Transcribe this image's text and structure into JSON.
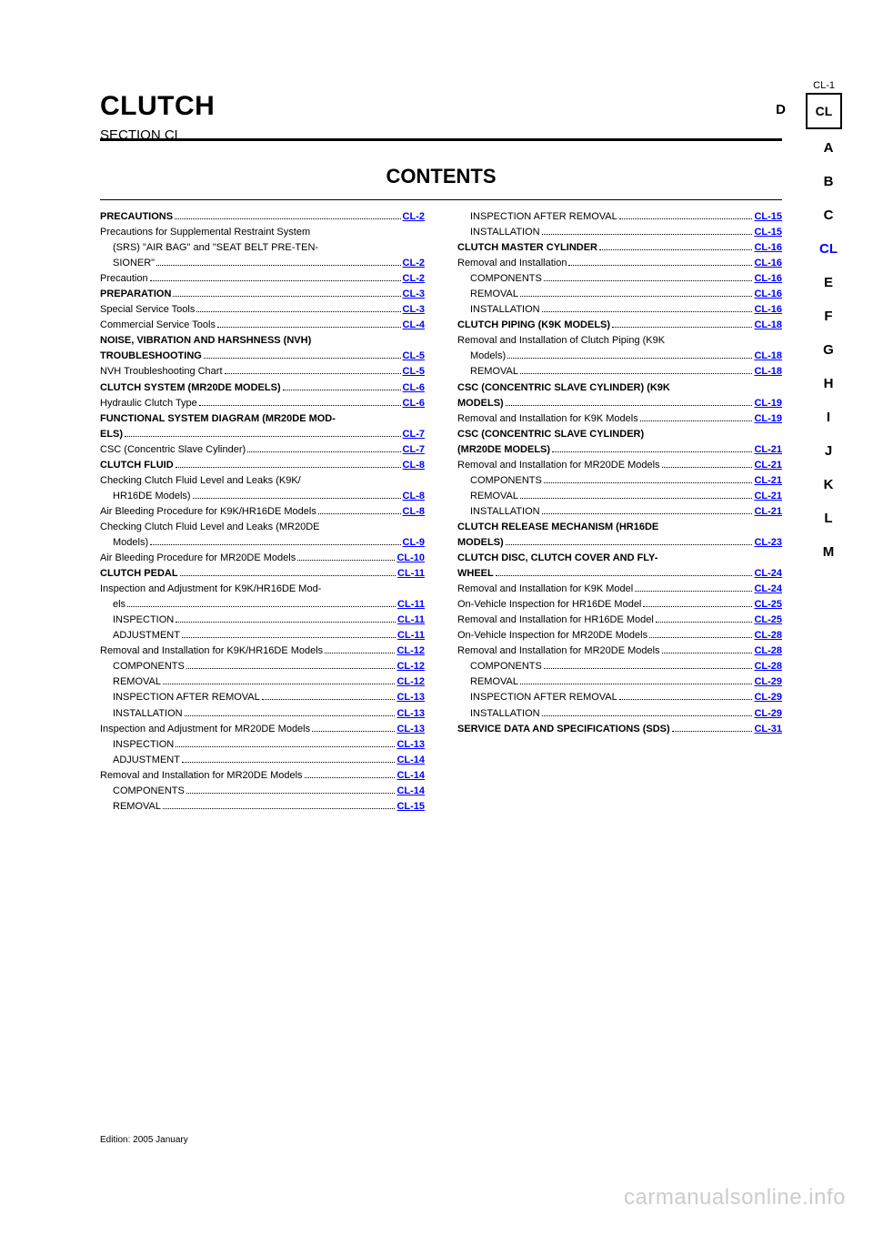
{
  "header": {
    "page_number": "CL-1",
    "section_letter": "D",
    "section_code": "CL"
  },
  "title": {
    "main": "CLUTCH",
    "sub": "SECTION CL"
  },
  "contents_heading": "CONTENTS",
  "side_tabs": [
    {
      "label": "A",
      "current": false
    },
    {
      "label": "B",
      "current": false
    },
    {
      "label": "C",
      "current": false
    },
    {
      "label": "CL",
      "current": true
    },
    {
      "label": "E",
      "current": false
    },
    {
      "label": "F",
      "current": false
    },
    {
      "label": "G",
      "current": false
    },
    {
      "label": "H",
      "current": false
    },
    {
      "label": "I",
      "current": false
    },
    {
      "label": "J",
      "current": false
    },
    {
      "label": "K",
      "current": false
    },
    {
      "label": "L",
      "current": false
    },
    {
      "label": "M",
      "current": false
    }
  ],
  "toc": {
    "left": [
      {
        "level": 0,
        "label": "PRECAUTIONS",
        "page": "2"
      },
      {
        "level": 1,
        "label": "Precautions for Supplemental Restraint System",
        "page": null
      },
      {
        "level": 2,
        "label": "(SRS) \"AIR BAG\" and \"SEAT BELT PRE-TEN-",
        "page": null
      },
      {
        "level": 2,
        "label": "SIONER\"",
        "page": "2"
      },
      {
        "level": 1,
        "label": "Precaution",
        "page": "2"
      },
      {
        "level": 0,
        "label": "PREPARATION",
        "page": "3"
      },
      {
        "level": 1,
        "label": "Special Service Tools",
        "page": "3"
      },
      {
        "level": 1,
        "label": "Commercial Service Tools",
        "page": "4"
      },
      {
        "level": 0,
        "label": "NOISE, VIBRATION AND HARSHNESS (NVH)",
        "page": null
      },
      {
        "level": 0,
        "label": "TROUBLESHOOTING",
        "page": "5"
      },
      {
        "level": 1,
        "label": "NVH Troubleshooting Chart",
        "page": "5"
      },
      {
        "level": 0,
        "label": "CLUTCH SYSTEM (MR20DE MODELS)",
        "page": "6"
      },
      {
        "level": 1,
        "label": "Hydraulic Clutch Type",
        "page": "6"
      },
      {
        "level": 0,
        "label": "FUNCTIONAL SYSTEM DIAGRAM (MR20DE MOD-",
        "page": null
      },
      {
        "level": 0,
        "label": "ELS)",
        "page": "7"
      },
      {
        "level": 1,
        "label": "CSC (Concentric Slave Cylinder)",
        "page": "7"
      },
      {
        "level": 0,
        "label": "CLUTCH FLUID",
        "page": "8"
      },
      {
        "level": 1,
        "label": "Checking Clutch Fluid Level and Leaks (K9K/",
        "page": null
      },
      {
        "level": 2,
        "label": "HR16DE Models)",
        "page": "8"
      },
      {
        "level": 1,
        "label": "Air Bleeding Procedure for K9K/HR16DE Models",
        "page": "8"
      },
      {
        "level": 1,
        "label": "Checking Clutch Fluid Level and Leaks (MR20DE",
        "page": null
      },
      {
        "level": 2,
        "label": "Models)",
        "page": "9"
      },
      {
        "level": 1,
        "label": "Air Bleeding Procedure for MR20DE Models",
        "page": "10"
      },
      {
        "level": 0,
        "label": "CLUTCH PEDAL",
        "page": "11"
      },
      {
        "level": 1,
        "label": "Inspection and Adjustment for K9K/HR16DE Mod-",
        "page": null
      },
      {
        "level": 2,
        "label": "els",
        "page": "11"
      },
      {
        "level": 2,
        "label": "INSPECTION",
        "page": "11"
      },
      {
        "level": 2,
        "label": "ADJUSTMENT",
        "page": "11"
      },
      {
        "level": 1,
        "label": "Removal and Installation for K9K/HR16DE Models",
        "page": "12"
      },
      {
        "level": 2,
        "label": "COMPONENTS",
        "page": "12"
      },
      {
        "level": 2,
        "label": "REMOVAL",
        "page": "12"
      },
      {
        "level": 2,
        "label": "INSPECTION AFTER REMOVAL",
        "page": "13"
      },
      {
        "level": 2,
        "label": "INSTALLATION",
        "page": "13"
      },
      {
        "level": 1,
        "label": "Inspection and Adjustment for MR20DE Models",
        "page": "13"
      },
      {
        "level": 2,
        "label": "INSPECTION",
        "page": "13"
      },
      {
        "level": 2,
        "label": "ADJUSTMENT",
        "page": "14"
      },
      {
        "level": 1,
        "label": "Removal and Installation for MR20DE Models",
        "page": "14"
      },
      {
        "level": 2,
        "label": "COMPONENTS",
        "page": "14"
      },
      {
        "level": 2,
        "label": "REMOVAL",
        "page": "15"
      }
    ],
    "right": [
      {
        "level": 2,
        "label": "INSPECTION AFTER REMOVAL",
        "page": "15"
      },
      {
        "level": 2,
        "label": "INSTALLATION",
        "page": "15"
      },
      {
        "level": 0,
        "label": "CLUTCH MASTER CYLINDER",
        "page": "16"
      },
      {
        "level": 1,
        "label": "Removal and Installation",
        "page": "16"
      },
      {
        "level": 2,
        "label": "COMPONENTS",
        "page": "16"
      },
      {
        "level": 2,
        "label": "REMOVAL",
        "page": "16"
      },
      {
        "level": 2,
        "label": "INSTALLATION",
        "page": "16"
      },
      {
        "level": 0,
        "label": "CLUTCH PIPING (K9K MODELS)",
        "page": "18"
      },
      {
        "level": 1,
        "label": "Removal and Installation of Clutch Piping (K9K",
        "page": null
      },
      {
        "level": 2,
        "label": "Models)",
        "page": "18"
      },
      {
        "level": 2,
        "label": "REMOVAL",
        "page": "18"
      },
      {
        "level": 0,
        "label": "CSC (CONCENTRIC SLAVE CYLINDER) (K9K",
        "page": null
      },
      {
        "level": 0,
        "label": "MODELS)",
        "page": "19"
      },
      {
        "level": 1,
        "label": "Removal and Installation for K9K Models",
        "page": "19"
      },
      {
        "level": 0,
        "label": "CSC (CONCENTRIC SLAVE CYLINDER)",
        "page": null
      },
      {
        "level": 0,
        "label": "(MR20DE MODELS)",
        "page": "21"
      },
      {
        "level": 1,
        "label": "Removal and Installation for MR20DE Models",
        "page": "21"
      },
      {
        "level": 2,
        "label": "COMPONENTS",
        "page": "21"
      },
      {
        "level": 2,
        "label": "REMOVAL",
        "page": "21"
      },
      {
        "level": 2,
        "label": "INSTALLATION",
        "page": "21"
      },
      {
        "level": 0,
        "label": "CLUTCH RELEASE MECHANISM (HR16DE",
        "page": null
      },
      {
        "level": 0,
        "label": "MODELS)",
        "page": "23"
      },
      {
        "level": 0,
        "label": "CLUTCH DISC, CLUTCH COVER AND FLY-",
        "page": null
      },
      {
        "level": 0,
        "label": "WHEEL",
        "page": "24"
      },
      {
        "level": 1,
        "label": "Removal and Installation for K9K Model",
        "page": "24"
      },
      {
        "level": 1,
        "label": "On-Vehicle Inspection for HR16DE Model",
        "page": "25"
      },
      {
        "level": 1,
        "label": "Removal and Installation for HR16DE Model",
        "page": "25"
      },
      {
        "level": 1,
        "label": "On-Vehicle Inspection for MR20DE Models",
        "page": "28"
      },
      {
        "level": 1,
        "label": "Removal and Installation for MR20DE Models",
        "page": "28"
      },
      {
        "level": 2,
        "label": "COMPONENTS",
        "page": "28"
      },
      {
        "level": 2,
        "label": "REMOVAL",
        "page": "29"
      },
      {
        "level": 2,
        "label": "INSPECTION AFTER REMOVAL",
        "page": "29"
      },
      {
        "level": 2,
        "label": "INSTALLATION",
        "page": "29"
      },
      {
        "level": 0,
        "label": "SERVICE DATA AND SPECIFICATIONS (SDS)",
        "page": "31"
      }
    ]
  },
  "edition": "Edition: 2005 January",
  "watermark": "carmanualsonline.info",
  "colors": {
    "link": "#0000ff",
    "watermark": "#cccccc",
    "text": "#000000",
    "bg": "#ffffff"
  }
}
